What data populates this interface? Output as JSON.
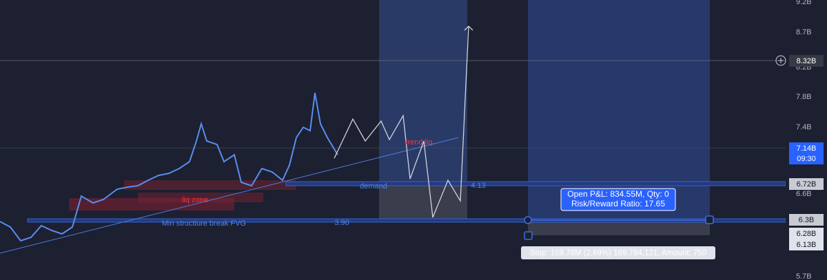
{
  "price_axis": {
    "ticks": [
      "9.2B",
      "8.7B",
      "8.2B",
      "7.8B",
      "7.4B",
      "6.6B",
      "5.7B"
    ],
    "badges": {
      "crosshair": "8.32B",
      "last": "7.14B",
      "countdown": "09:30",
      "demand": "6.72B",
      "fvg": "6.3B",
      "stop_a": "6.28B",
      "stop_b": "6.13B"
    }
  },
  "annotations": {
    "liq_zone": "liq zone",
    "trend_liq": "trend liq",
    "demand": "demand",
    "demand_value": "4.13",
    "fvg": "Min structiure break FVG",
    "fvg_value": "3.90"
  },
  "position": {
    "open_pnl": "Open P&L: 834.55M, Qty: 0",
    "risk_reward": "Risk/Reward Ratio: 17.65",
    "stop": "Stop: 169.78M (2.69%) 169,784,121, Amount: 750"
  }
}
